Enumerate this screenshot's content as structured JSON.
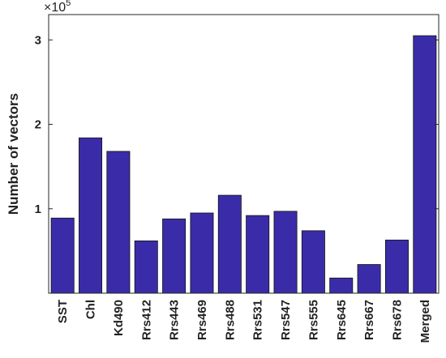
{
  "chart_data": {
    "type": "bar",
    "title": "",
    "xlabel": "",
    "ylabel": "Number of vectors",
    "y_multiplier_base": "×10",
    "y_multiplier_exp": "5",
    "ylim": [
      0,
      3.3
    ],
    "yticks": [
      1,
      2,
      3
    ],
    "ytick_labels": [
      "1",
      "2",
      "3"
    ],
    "bar_color": "#3a2ca8",
    "grid": false,
    "categories": [
      "SST",
      "Chl",
      "Kd490",
      "Rrs412",
      "Rrs443",
      "Rrs469",
      "Rrs488",
      "Rrs531",
      "Rrs547",
      "Rrs555",
      "Rrs645",
      "Rrs667",
      "Rrs678",
      "Merged"
    ],
    "values": [
      0.89,
      1.84,
      1.68,
      0.62,
      0.88,
      0.95,
      1.16,
      0.92,
      0.97,
      0.74,
      0.18,
      0.34,
      0.63,
      3.05
    ]
  }
}
